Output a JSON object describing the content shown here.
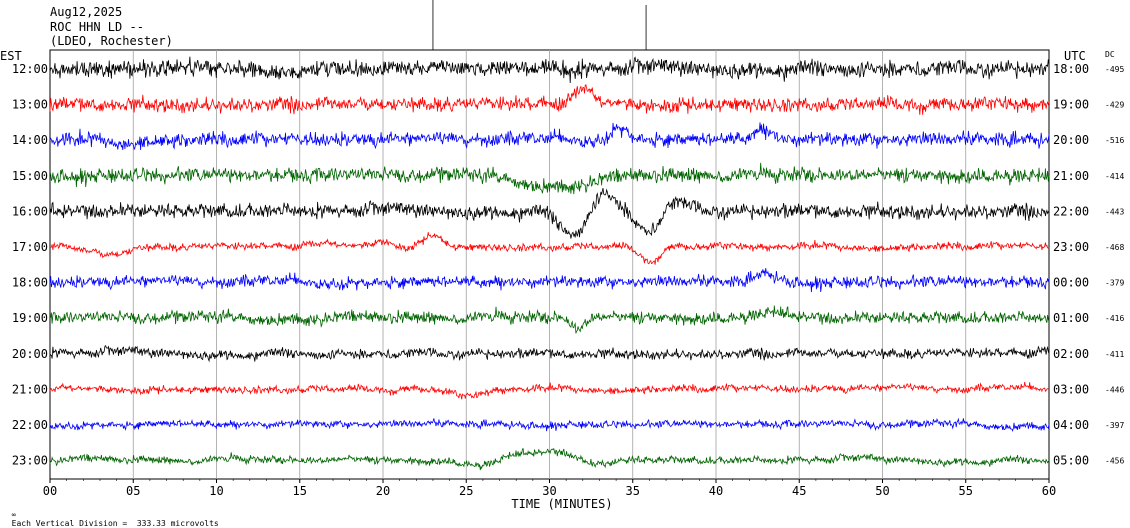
{
  "header": {
    "date": "Aug12,2025",
    "station": "ROC HHN LD --",
    "source": "(LDEO, Rochester)"
  },
  "footer": {
    "scale_note": "Each Vertical Division =  333.33 microvolts"
  },
  "colors": {
    "trace_cycle": [
      "#000000",
      "#ff0000",
      "#0000ff",
      "#006400"
    ],
    "grid": "#a0a0a0",
    "axis": "#000000"
  },
  "chart_data": {
    "type": "line",
    "title": "",
    "xlabel": "TIME (MINUTES)",
    "xlim": [
      0,
      60
    ],
    "x_ticks": [
      "00",
      "05",
      "10",
      "15",
      "20",
      "25",
      "30",
      "35",
      "40",
      "45",
      "50",
      "55",
      "60"
    ],
    "left_axis_title": "EST",
    "right_axis_title": "UTC",
    "dc_title": "DC",
    "grid": true,
    "rows": [
      {
        "est": "12:00",
        "utc": "18:00",
        "dc": "-495"
      },
      {
        "est": "13:00",
        "utc": "19:00",
        "dc": "-429"
      },
      {
        "est": "14:00",
        "utc": "20:00",
        "dc": "-516"
      },
      {
        "est": "15:00",
        "utc": "21:00",
        "dc": "-414"
      },
      {
        "est": "16:00",
        "utc": "22:00",
        "dc": "-443"
      },
      {
        "est": "17:00",
        "utc": "23:00",
        "dc": "-468"
      },
      {
        "est": "18:00",
        "utc": "00:00",
        "dc": "-379"
      },
      {
        "est": "19:00",
        "utc": "01:00",
        "dc": "-416"
      },
      {
        "est": "20:00",
        "utc": "02:00",
        "dc": "-411"
      },
      {
        "est": "21:00",
        "utc": "03:00",
        "dc": "-446"
      },
      {
        "est": "22:00",
        "utc": "04:00",
        "dc": "-397"
      },
      {
        "est": "23:00",
        "utc": "05:00",
        "dc": "-456"
      }
    ]
  }
}
